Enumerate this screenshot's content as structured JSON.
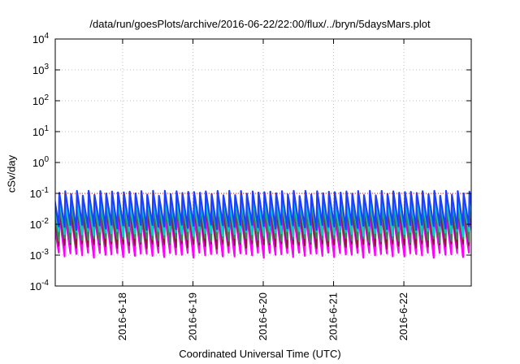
{
  "chart_data": {
    "type": "line",
    "title": "/data/run/goesPlots/archive/2016-06-22/22:00/flux/../bryn/5daysMars.plot",
    "xlabel": "Coordinated Universal Time (UTC)",
    "ylabel": "cSv/day",
    "yscale": "log",
    "ylim": [
      0.0001,
      10000
    ],
    "y_ticks": [
      {
        "value": 0.0001,
        "base": "10",
        "exp": "-4"
      },
      {
        "value": 0.001,
        "base": "10",
        "exp": "-3"
      },
      {
        "value": 0.01,
        "base": "10",
        "exp": "-2"
      },
      {
        "value": 0.1,
        "base": "10",
        "exp": "-1"
      },
      {
        "value": 1,
        "base": "10",
        "exp": "0"
      },
      {
        "value": 10,
        "base": "10",
        "exp": "1"
      },
      {
        "value": 100,
        "base": "10",
        "exp": "2"
      },
      {
        "value": 1000,
        "base": "10",
        "exp": "3"
      },
      {
        "value": 10000,
        "base": "10",
        "exp": "4"
      }
    ],
    "xlim": [
      "2016-06-17T01:00",
      "2016-06-22T23:00"
    ],
    "x_ticks": [
      {
        "value": "2016-06-18T00:00",
        "label": "2016-6-18"
      },
      {
        "value": "2016-06-19T00:00",
        "label": "2016-6-19"
      },
      {
        "value": "2016-06-20T00:00",
        "label": "2016-6-20"
      },
      {
        "value": "2016-06-21T00:00",
        "label": "2016-6-21"
      },
      {
        "value": "2016-06-22T00:00",
        "label": "2016-6-22"
      }
    ],
    "grid": true,
    "reference_line": {
      "value": 0.1,
      "color": "#ff0000",
      "style": "dotted"
    },
    "cycle_hours": 2,
    "series": [
      {
        "color": "#ff00ff",
        "peak": 0.02,
        "trough": 0.001
      },
      {
        "color": "#8b1a3a",
        "peak": 0.03,
        "trough": 0.002
      },
      {
        "color": "#2e8b57",
        "peak": 0.045,
        "trough": 0.003
      },
      {
        "color": "#00ced1",
        "peak": 0.07,
        "trough": 0.005
      },
      {
        "color": "#1e3fff",
        "peak": 0.11,
        "trough": 0.008
      }
    ]
  }
}
